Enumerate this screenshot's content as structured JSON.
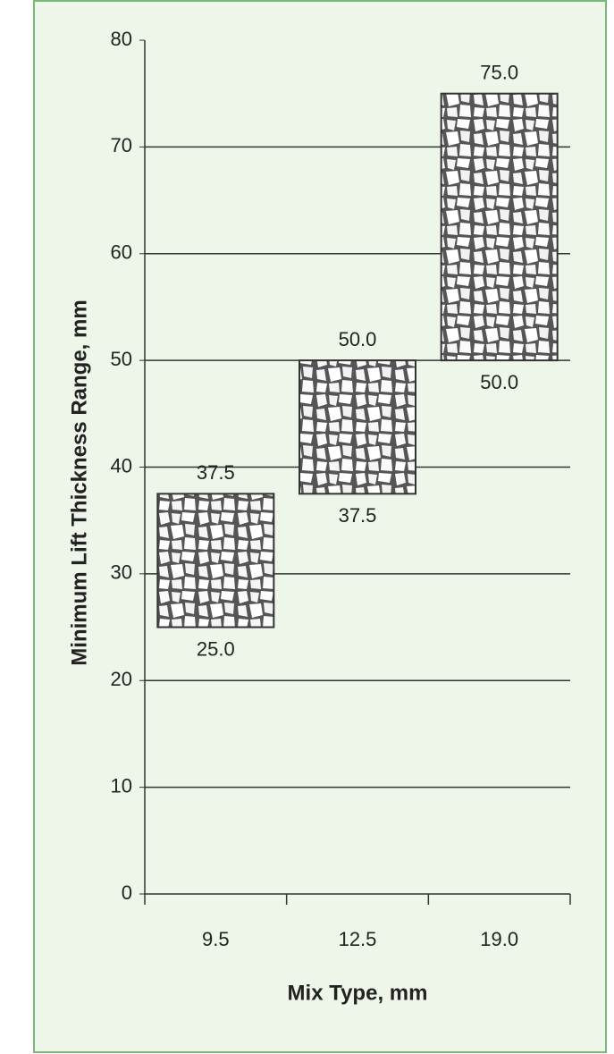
{
  "chart_data": {
    "type": "range_bar",
    "x_label": "Mix Type, mm",
    "y_label": "Minimum Lift Thickness Range, mm",
    "categories": [
      "9.5",
      "12.5",
      "19.0"
    ],
    "low": [
      25,
      37.5,
      50
    ],
    "high": [
      37.5,
      50,
      75
    ],
    "low_labels": [
      "25.0",
      "37.5",
      "50.0"
    ],
    "high_labels": [
      "37.5",
      "50.0",
      "75.0"
    ],
    "ylim": [
      0,
      80
    ],
    "yticks": [
      0,
      10,
      20,
      30,
      40,
      50,
      60,
      70,
      80
    ],
    "grid": true
  }
}
